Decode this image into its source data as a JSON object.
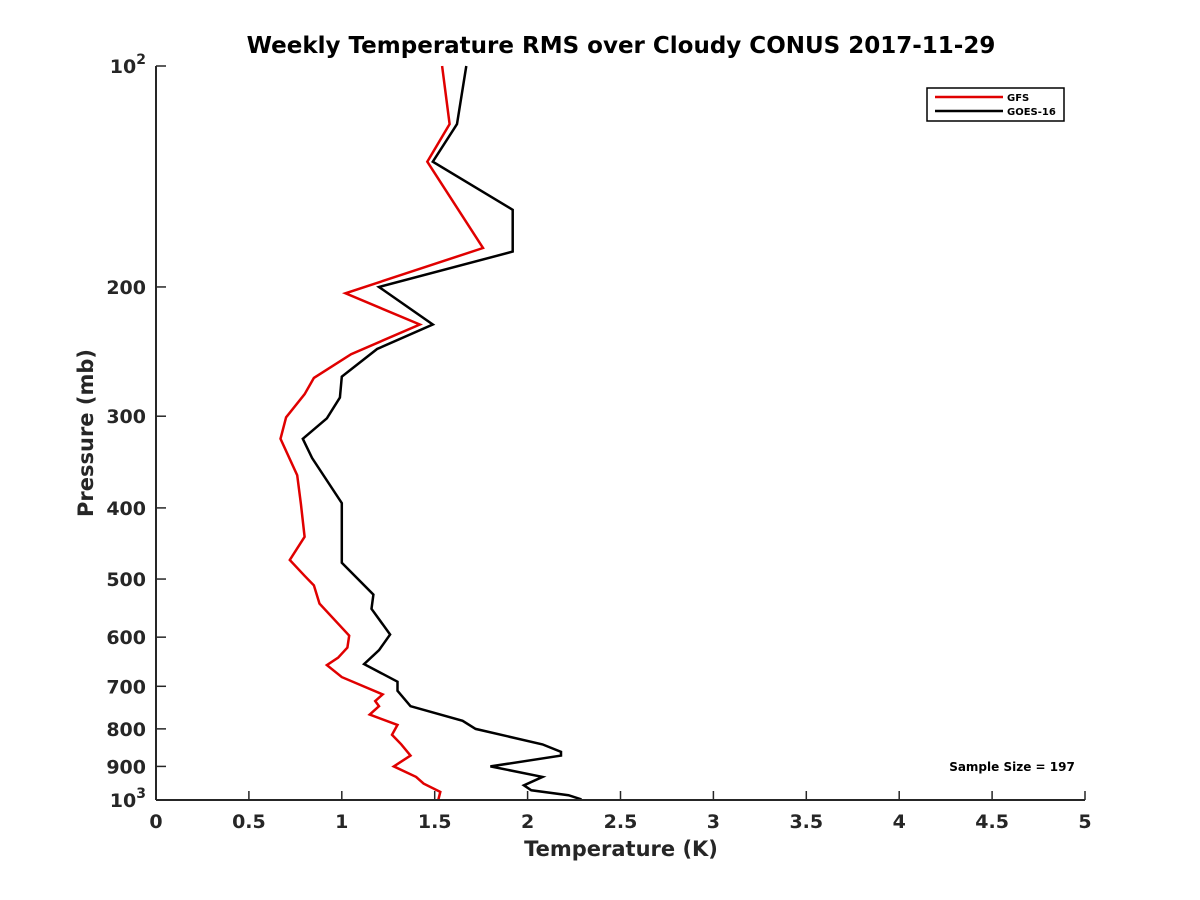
{
  "chart_data": {
    "type": "line",
    "title": "Weekly Temperature RMS over Cloudy CONUS 2017-11-29",
    "xlabel": "Temperature (K)",
    "ylabel": "Pressure (mb)",
    "xlim": [
      0,
      5
    ],
    "ylim": [
      100,
      1000
    ],
    "y_scale": "log",
    "y_reversed": true,
    "grid": false,
    "legend_position": "top-right",
    "x_ticks": [
      {
        "value": 0,
        "label": "0"
      },
      {
        "value": 0.5,
        "label": "0.5"
      },
      {
        "value": 1,
        "label": "1"
      },
      {
        "value": 1.5,
        "label": "1.5"
      },
      {
        "value": 2,
        "label": "2"
      },
      {
        "value": 2.5,
        "label": "2.5"
      },
      {
        "value": 3,
        "label": "3"
      },
      {
        "value": 3.5,
        "label": "3.5"
      },
      {
        "value": 4,
        "label": "4"
      },
      {
        "value": 4.5,
        "label": "4.5"
      },
      {
        "value": 5,
        "label": "5"
      }
    ],
    "y_ticks": [
      {
        "value": 100,
        "base": "10",
        "exp": "2"
      },
      {
        "value": 200,
        "label": "200"
      },
      {
        "value": 300,
        "label": "300"
      },
      {
        "value": 400,
        "label": "400"
      },
      {
        "value": 500,
        "label": "500"
      },
      {
        "value": 600,
        "label": "600"
      },
      {
        "value": 700,
        "label": "700"
      },
      {
        "value": 800,
        "label": "800"
      },
      {
        "value": 900,
        "label": "900"
      },
      {
        "value": 1000,
        "base": "10",
        "exp": "3"
      }
    ],
    "series": [
      {
        "name": "GFS",
        "color": "#e00000",
        "points": [
          [
            1.54,
            100
          ],
          [
            1.58,
            120
          ],
          [
            1.46,
            135
          ],
          [
            1.76,
            177
          ],
          [
            1.02,
            204
          ],
          [
            1.42,
            225
          ],
          [
            1.05,
            247
          ],
          [
            0.85,
            266
          ],
          [
            0.8,
            280
          ],
          [
            0.7,
            301
          ],
          [
            0.67,
            322
          ],
          [
            0.76,
            361
          ],
          [
            0.78,
            395
          ],
          [
            0.8,
            438
          ],
          [
            0.72,
            471
          ],
          [
            0.8,
            495
          ],
          [
            0.85,
            510
          ],
          [
            0.88,
            540
          ],
          [
            1.04,
            597
          ],
          [
            1.03,
            620
          ],
          [
            0.98,
            640
          ],
          [
            0.92,
            655
          ],
          [
            1.0,
            680
          ],
          [
            1.22,
            718
          ],
          [
            1.18,
            733
          ],
          [
            1.2,
            745
          ],
          [
            1.15,
            765
          ],
          [
            1.3,
            790
          ],
          [
            1.27,
            815
          ],
          [
            1.32,
            840
          ],
          [
            1.37,
            870
          ],
          [
            1.28,
            900
          ],
          [
            1.4,
            930
          ],
          [
            1.44,
            950
          ],
          [
            1.53,
            975
          ],
          [
            1.52,
            998
          ]
        ]
      },
      {
        "name": "GOES-16",
        "color": "#000000",
        "points": [
          [
            1.67,
            100
          ],
          [
            1.62,
            120
          ],
          [
            1.49,
            135
          ],
          [
            1.92,
            157
          ],
          [
            1.92,
            179
          ],
          [
            1.2,
            200
          ],
          [
            1.49,
            225
          ],
          [
            1.19,
            243
          ],
          [
            1.0,
            265
          ],
          [
            0.99,
            283
          ],
          [
            0.92,
            302
          ],
          [
            0.79,
            322
          ],
          [
            0.84,
            342
          ],
          [
            1.0,
            394
          ],
          [
            1.0,
            421
          ],
          [
            1.0,
            460
          ],
          [
            1.0,
            475
          ],
          [
            1.17,
            525
          ],
          [
            1.16,
            549
          ],
          [
            1.26,
            595
          ],
          [
            1.2,
            625
          ],
          [
            1.12,
            653
          ],
          [
            1.3,
            690
          ],
          [
            1.3,
            710
          ],
          [
            1.37,
            745
          ],
          [
            1.65,
            780
          ],
          [
            1.72,
            800
          ],
          [
            2.08,
            840
          ],
          [
            2.18,
            860
          ],
          [
            2.18,
            870
          ],
          [
            1.8,
            900
          ],
          [
            2.08,
            930
          ],
          [
            1.98,
            955
          ],
          [
            2.02,
            970
          ],
          [
            2.22,
            985
          ],
          [
            2.29,
            998
          ]
        ]
      }
    ],
    "annotations": [
      {
        "text": "Sample Size = 197",
        "position": "bottom-right"
      }
    ]
  }
}
